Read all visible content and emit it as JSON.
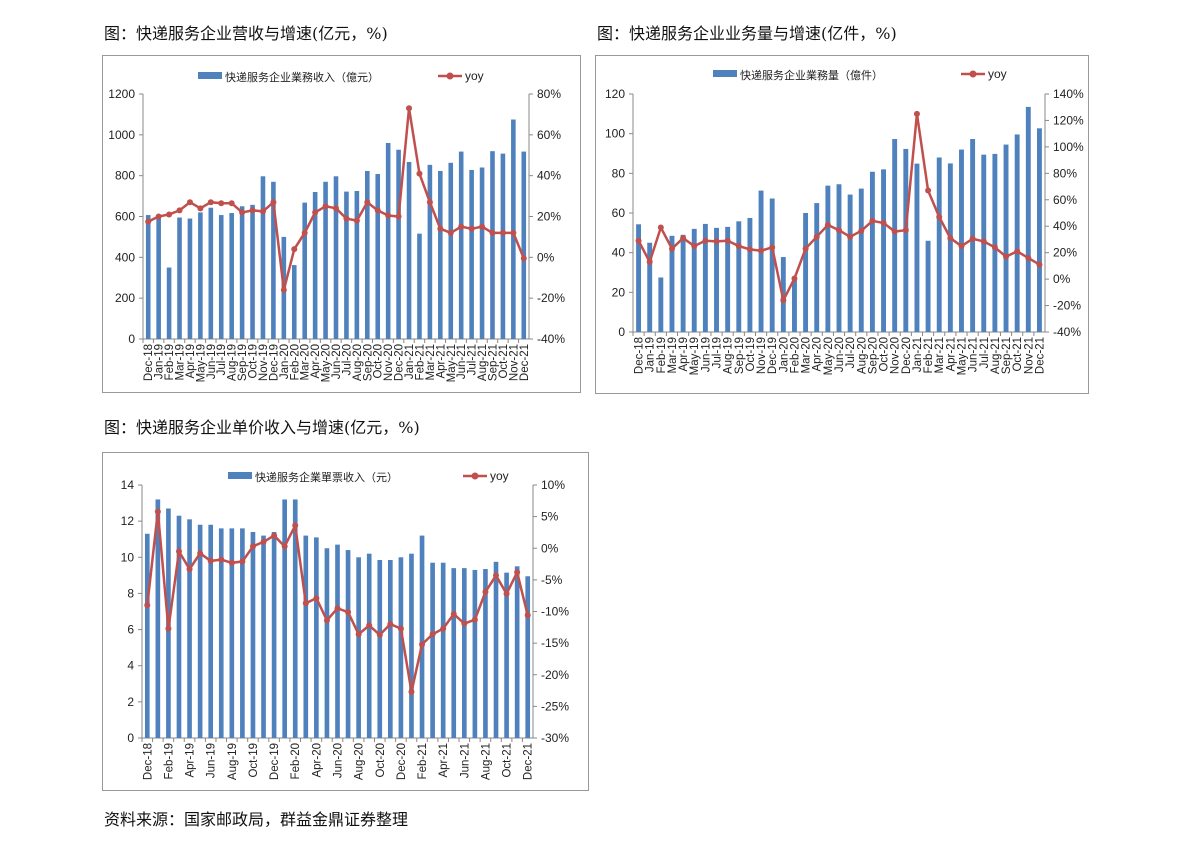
{
  "titles": [
    "图：快递服务企业营收与增速(亿元，%)",
    "图：快递服务企业业务量与增速(亿件，%)",
    "图：快递服务企业单价收入与增速(亿元，%)"
  ],
  "source": "资料来源：国家邮政局，群益金鼎证券整理",
  "colors": {
    "bar": "#4f81bd",
    "line": "#c0504d"
  },
  "chart_data": [
    {
      "type": "bar+line",
      "title": "图：快递服务企业营收与增速(亿元，%)",
      "categories": [
        "Dec-18",
        "Jan-19",
        "Feb-19",
        "Mar-19",
        "Apr-19",
        "May-19",
        "Jun-19",
        "Jul-19",
        "Aug-19",
        "Sep-19",
        "Oct-19",
        "Nov-19",
        "Dec-19",
        "Jan-20",
        "Feb-20",
        "Mar-20",
        "Apr-20",
        "May-20",
        "Jun-20",
        "Jul-20",
        "Aug-20",
        "Sep-20",
        "Oct-20",
        "Nov-20",
        "Dec-20",
        "Jan-21",
        "Feb-21",
        "Mar-21",
        "Apr-21",
        "May-21",
        "Jun-21",
        "Jul-21",
        "Aug-21",
        "Sep-21",
        "Oct-21",
        "Nov-21",
        "Dec-21"
      ],
      "series": [
        {
          "name": "快递服务企业業務收入（億元）",
          "axis": "left",
          "values": [
            607,
            590,
            350,
            595,
            590,
            620,
            643,
            607,
            617,
            650,
            657,
            797,
            770,
            500,
            362,
            668,
            720,
            770,
            797,
            722,
            725,
            823,
            808,
            960,
            927,
            867,
            516,
            853,
            823,
            863,
            918,
            828,
            840,
            920,
            908,
            1075,
            918
          ]
        },
        {
          "name": "yoy",
          "axis": "right",
          "values": [
            17.5,
            20,
            21,
            23,
            27,
            24,
            27,
            26.5,
            26.5,
            22,
            23,
            22.5,
            27,
            -16,
            4,
            12,
            22,
            25,
            24,
            19,
            18,
            27,
            23,
            20.5,
            20,
            73,
            41,
            27,
            14,
            12,
            15,
            14,
            15,
            12,
            12,
            12,
            -0.5
          ]
        }
      ],
      "ylim": [
        0,
        1200
      ],
      "yticks": [
        "0",
        "200",
        "400",
        "600",
        "800",
        "1000",
        "1200"
      ],
      "y2lim": [
        -40,
        80
      ],
      "y2ticks": [
        "-40%",
        "-20%",
        "0%",
        "20%",
        "40%",
        "60%",
        "80%"
      ],
      "label_step": 1
    },
    {
      "type": "bar+line",
      "title": "图：快递服务企业业务量与增速(亿件，%)",
      "categories": [
        "Dec-18",
        "Jan-19",
        "Feb-19",
        "Mar-19",
        "Apr-19",
        "May-19",
        "Jun-19",
        "Jul-19",
        "Aug-19",
        "Sep-19",
        "Oct-19",
        "Nov-19",
        "Dec-19",
        "Jan-20",
        "Feb-20",
        "Mar-20",
        "Apr-20",
        "May-20",
        "Jun-20",
        "Jul-20",
        "Aug-20",
        "Sep-20",
        "Oct-20",
        "Nov-20",
        "Dec-20",
        "Jan-21",
        "Feb-21",
        "Mar-21",
        "Apr-21",
        "May-21",
        "Jun-21",
        "Jul-21",
        "Aug-21",
        "Sep-21",
        "Oct-21",
        "Nov-21",
        "Dec-21"
      ],
      "series": [
        {
          "name": "快递服务企业業務量（億件）",
          "axis": "left",
          "values": [
            54.3,
            45,
            27.5,
            48.5,
            49,
            52,
            54.5,
            52.5,
            53,
            55.8,
            57.5,
            71.3,
            67.3,
            37.8,
            27.5,
            60,
            65,
            73.8,
            74.5,
            69.3,
            72.3,
            80.8,
            82,
            97.3,
            92.3,
            84.9,
            46,
            88,
            85,
            92,
            97.3,
            89.4,
            89.8,
            94.5,
            99.6,
            113.5,
            102.7
          ]
        },
        {
          "name": "yoy",
          "axis": "right",
          "values": [
            29,
            13,
            39,
            23,
            31,
            25,
            29,
            28.5,
            29,
            25,
            22.5,
            21.5,
            24,
            -16,
            0.5,
            23,
            32,
            41,
            37,
            32,
            36.5,
            44,
            42.5,
            36,
            37,
            125,
            67,
            47,
            31,
            25,
            30.5,
            28.5,
            24,
            17,
            21,
            16,
            11
          ]
        }
      ],
      "ylim": [
        0,
        120
      ],
      "yticks": [
        "0",
        "20",
        "40",
        "60",
        "80",
        "100",
        "120"
      ],
      "y2lim": [
        -40,
        140
      ],
      "y2ticks": [
        "-40%",
        "-20%",
        "0%",
        "20%",
        "40%",
        "60%",
        "80%",
        "100%",
        "120%",
        "140%"
      ],
      "label_step": 1
    },
    {
      "type": "bar+line",
      "title": "图：快递服务企业单价收入与增速(亿元，%)",
      "categories": [
        "Dec-18",
        "Jan-19",
        "Feb-19",
        "Mar-19",
        "Apr-19",
        "May-19",
        "Jun-19",
        "Jul-19",
        "Aug-19",
        "Sep-19",
        "Oct-19",
        "Nov-19",
        "Dec-19",
        "Jan-20",
        "Feb-20",
        "Mar-20",
        "Apr-20",
        "May-20",
        "Jun-20",
        "Jul-20",
        "Aug-20",
        "Sep-20",
        "Oct-20",
        "Nov-20",
        "Dec-20",
        "Jan-21",
        "Feb-21",
        "Mar-21",
        "Apr-21",
        "May-21",
        "Jun-21",
        "Jul-21",
        "Aug-21",
        "Sep-21",
        "Oct-21",
        "Nov-21",
        "Dec-21"
      ],
      "series": [
        {
          "name": "快递服务企業單票收入（元）",
          "axis": "left",
          "values": [
            11.3,
            13.2,
            12.7,
            12.3,
            12.1,
            11.8,
            11.8,
            11.6,
            11.6,
            11.6,
            11.4,
            11.2,
            11.4,
            13.2,
            13.2,
            11.2,
            11.1,
            10.5,
            10.7,
            10.4,
            10.0,
            10.2,
            9.85,
            9.85,
            10.0,
            10.2,
            11.2,
            9.7,
            9.7,
            9.4,
            9.4,
            9.3,
            9.35,
            9.75,
            9.15,
            9.5,
            8.95
          ]
        },
        {
          "name": "yoy",
          "axis": "right",
          "values": [
            -9,
            5.8,
            -12.7,
            -0.5,
            -3.3,
            -0.8,
            -2,
            -1.8,
            -2.3,
            -2.1,
            0.3,
            1,
            2,
            0.3,
            3.6,
            -8.7,
            -7.9,
            -11.4,
            -9.5,
            -10.1,
            -13.6,
            -12.2,
            -13.7,
            -12,
            -12.7,
            -22.7,
            -15.2,
            -13.6,
            -12.7,
            -10.4,
            -11.9,
            -11.3,
            -6.9,
            -4.3,
            -7.2,
            -3.8,
            -10.6
          ]
        }
      ],
      "ylim": [
        0,
        14
      ],
      "yticks": [
        "0",
        "2",
        "4",
        "6",
        "8",
        "10",
        "12",
        "14"
      ],
      "y2lim": [
        -30,
        10
      ],
      "y2ticks": [
        "-30%",
        "-25%",
        "-20%",
        "-15%",
        "-10%",
        "-5%",
        "0%",
        "5%",
        "10%"
      ],
      "label_step": 2
    }
  ]
}
